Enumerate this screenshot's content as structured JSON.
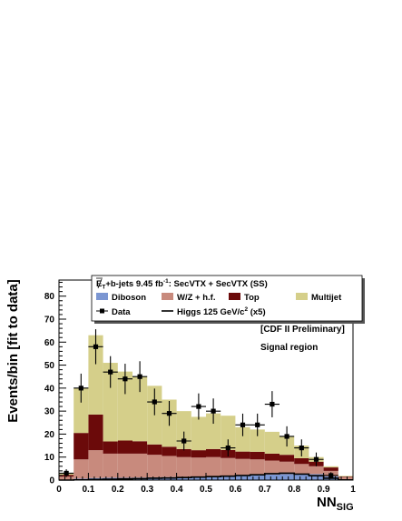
{
  "chart_data": {
    "type": "bar",
    "subtype": "stacked-histogram",
    "title": "E̸T+b-jets 9.45 fb-1: SecVTX + SecVTX (SS)",
    "title_parts": {
      "prefix": "E",
      "sub": "T",
      "mid": "+b-jets 9.45 fb",
      "sup": "-1",
      "suffix": ": SecVTX + SecVTX (SS)"
    },
    "xlabel": "NN",
    "xlabel_sub": "SIG",
    "ylabel": "Events/bin [fit to data]",
    "xlim": [
      0,
      1
    ],
    "ylim": [
      0,
      87
    ],
    "xticks": [
      0,
      0.1,
      0.2,
      0.3,
      0.4,
      0.5,
      0.6,
      0.7,
      0.8,
      0.9,
      1
    ],
    "xtick_labels": [
      "0",
      "0.1",
      "0.2",
      "0.3",
      "0.4",
      "0.5",
      "0.6",
      "0.7",
      "0.8",
      "0.9",
      "1"
    ],
    "yticks": [
      0,
      10,
      20,
      30,
      40,
      50,
      60,
      70,
      80
    ],
    "ytick_labels": [
      "0",
      "10",
      "20",
      "30",
      "40",
      "50",
      "60",
      "70",
      "80"
    ],
    "annotations": [
      "[CDF II Preliminary]",
      "Signal region"
    ],
    "bin_edges": [
      0,
      0.05,
      0.1,
      0.15,
      0.2,
      0.25,
      0.3,
      0.35,
      0.4,
      0.45,
      0.5,
      0.55,
      0.6,
      0.65,
      0.7,
      0.75,
      0.8,
      0.85,
      0.9,
      0.95,
      1.0
    ],
    "stack": [
      {
        "name": "Diboson",
        "color": "#7b96d2",
        "values": [
          0.2,
          0.6,
          0.9,
          1.0,
          1.0,
          1.1,
          1.2,
          1.3,
          1.3,
          1.4,
          1.5,
          1.6,
          1.8,
          2.0,
          2.4,
          2.6,
          2.7,
          2.6,
          1.6,
          0.4
        ]
      },
      {
        "name": "W/Z + h.f.",
        "color": "#c88a7d",
        "values": [
          1.3,
          8.4,
          12.1,
          10.5,
          10.5,
          10.4,
          9.8,
          9.2,
          8.7,
          8.4,
          8.5,
          8.0,
          7.4,
          7.0,
          6.1,
          5.4,
          4.3,
          3.4,
          2.4,
          0.8
        ]
      },
      {
        "name": "Top",
        "color": "#6b0a0a",
        "values": [
          0.8,
          11.5,
          15.5,
          5.3,
          5.7,
          5.4,
          4.5,
          4.0,
          3.5,
          3.2,
          3.5,
          3.5,
          3.2,
          3.3,
          3.0,
          3.0,
          2.5,
          2.0,
          1.5,
          0.3
        ]
      },
      {
        "name": "Multijet",
        "color": "#d5cf8a",
        "values": [
          0.7,
          19.5,
          34.5,
          34.2,
          30.0,
          28.1,
          25.5,
          20.5,
          16.5,
          14.5,
          15.5,
          14.9,
          10.6,
          9.7,
          9.5,
          8.0,
          5.5,
          2.0,
          0.5,
          0.3
        ]
      }
    ],
    "data": {
      "name": "Data",
      "x": [
        0.025,
        0.075,
        0.125,
        0.175,
        0.225,
        0.275,
        0.325,
        0.375,
        0.425,
        0.475,
        0.525,
        0.575,
        0.625,
        0.675,
        0.725,
        0.775,
        0.825,
        0.875,
        0.925,
        0.975
      ],
      "y": [
        3,
        40,
        58,
        47,
        44,
        45,
        34,
        29,
        17,
        32,
        30,
        14,
        24,
        24,
        33,
        19,
        14,
        9,
        2,
        0
      ],
      "yerr": [
        1.7,
        6.3,
        7.6,
        6.9,
        6.6,
        6.7,
        5.8,
        5.4,
        4.1,
        5.7,
        5.5,
        3.7,
        4.9,
        4.9,
        5.7,
        4.4,
        3.7,
        3.0,
        1.4,
        0
      ]
    },
    "signal": {
      "name": "Higgs 125 GeV/c2 (x5)",
      "name_parts": {
        "main": "Higgs 125 GeV/c",
        "sup": "2",
        "suffix": " (x5)"
      },
      "color": "#000000",
      "values": [
        0.0,
        0.1,
        0.3,
        0.4,
        0.5,
        0.6,
        0.8,
        0.9,
        1.1,
        1.3,
        1.5,
        1.7,
        2.0,
        2.3,
        2.8,
        3.0,
        2.6,
        1.9,
        0.8,
        0.1
      ]
    },
    "legend": {
      "placement": "top",
      "entries": [
        {
          "label": "Diboson",
          "color": "#7b96d2",
          "kind": "fill"
        },
        {
          "label": "W/Z + h.f.",
          "color": "#c88a7d",
          "kind": "fill"
        },
        {
          "label": "Top",
          "color": "#6b0a0a",
          "kind": "fill"
        },
        {
          "label": "Multijet",
          "color": "#d5cf8a",
          "kind": "fill"
        },
        {
          "label": "Data",
          "color": "#000000",
          "kind": "marker"
        },
        {
          "label": "Higgs 125 GeV/c2 (x5)",
          "color": "#000000",
          "kind": "line"
        }
      ]
    },
    "grid": false
  }
}
